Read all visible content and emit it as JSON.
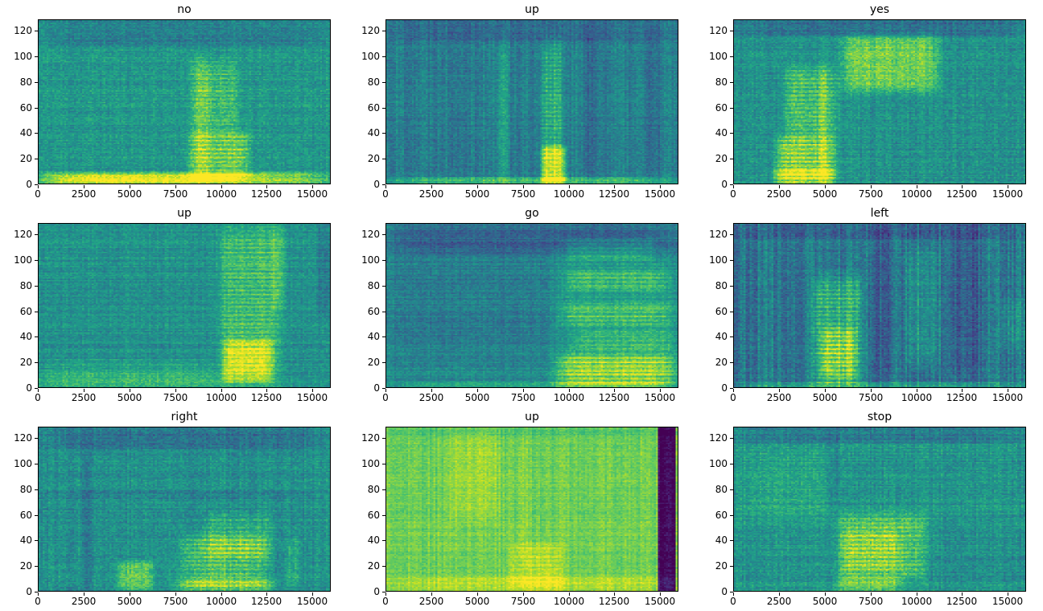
{
  "figure": {
    "background": "#ffffff"
  },
  "chart_data": {
    "type": "heatmap",
    "subtype": "audio-spectrogram-grid",
    "title": "",
    "colormap": "viridis",
    "colormap_stops": [
      [
        0.0,
        "#440154"
      ],
      [
        0.1,
        "#482475"
      ],
      [
        0.2,
        "#414487"
      ],
      [
        0.3,
        "#355f8d"
      ],
      [
        0.4,
        "#2a788e"
      ],
      [
        0.5,
        "#21918c"
      ],
      [
        0.6,
        "#22a884"
      ],
      [
        0.7,
        "#44bf70"
      ],
      [
        0.8,
        "#7ad151"
      ],
      [
        0.9,
        "#bddf26"
      ],
      [
        1.0,
        "#fde725"
      ]
    ],
    "grid": {
      "rows": 3,
      "cols": 3
    },
    "axes": {
      "x": {
        "max": 16000,
        "ticks": [
          0,
          2500,
          5000,
          7500,
          10000,
          12500,
          15000
        ]
      },
      "y": {
        "max": 129,
        "ticks": [
          0,
          20,
          40,
          60,
          80,
          100,
          120
        ]
      }
    },
    "panels": [
      {
        "title": "no",
        "seed": 11,
        "base": 0.53,
        "noise": 0.09,
        "col_stripe": 0.03,
        "row_stripe": 0.04,
        "features": [
          {
            "x": [
              0,
              16000
            ],
            "y": [
              0,
              9
            ],
            "amp": 0.3
          },
          {
            "x": [
              300,
              11500
            ],
            "y": [
              0,
              7
            ],
            "amp": 0.15
          },
          {
            "x": [
              8200,
              11600
            ],
            "y": [
              4,
              42
            ],
            "amp": 0.34,
            "striate": true,
            "ph": 0.4
          },
          {
            "x": [
              8300,
              11000
            ],
            "y": [
              40,
              97
            ],
            "amp": 0.2,
            "striate": true,
            "ph": 1.2
          },
          {
            "x": [
              0,
              16000
            ],
            "y": [
              108,
              129
            ],
            "amp": -0.1
          },
          {
            "x": [
              8600,
              9400
            ],
            "y": [
              0,
              100
            ],
            "amp": 0.1
          }
        ]
      },
      {
        "title": "up",
        "seed": 22,
        "base": 0.43,
        "noise": 0.08,
        "col_stripe": 0.06,
        "row_stripe": 0.03,
        "features": [
          {
            "x": [
              8500,
              9700
            ],
            "y": [
              0,
              112
            ],
            "amp": 0.26,
            "striate": true,
            "ph": 0.9
          },
          {
            "x": [
              8500,
              9900
            ],
            "y": [
              0,
              30
            ],
            "amp": 0.34
          },
          {
            "x": [
              6100,
              6700
            ],
            "y": [
              0,
              112
            ],
            "amp": 0.14
          },
          {
            "x": [
              0,
              16000
            ],
            "y": [
              0,
              5
            ],
            "amp": 0.26
          },
          {
            "x": [
              0,
              16000
            ],
            "y": [
              112,
              129
            ],
            "amp": -0.08
          },
          {
            "x": [
              10900,
              11700
            ],
            "y": [
              0,
              129
            ],
            "amp": -0.07
          },
          {
            "x": [
              14200,
              15100
            ],
            "y": [
              0,
              129
            ],
            "amp": -0.07
          }
        ]
      },
      {
        "title": "yes",
        "seed": 33,
        "base": 0.5,
        "noise": 0.09,
        "col_stripe": 0.04,
        "row_stripe": 0.04,
        "features": [
          {
            "x": [
              2300,
              5700
            ],
            "y": [
              0,
              38
            ],
            "amp": 0.42,
            "striate": true,
            "ph": 0.2
          },
          {
            "x": [
              2800,
              5700
            ],
            "y": [
              36,
              92
            ],
            "amp": 0.27,
            "striate": true,
            "ph": 1.7
          },
          {
            "x": [
              5900,
              11300
            ],
            "y": [
              72,
              117
            ],
            "amp": 0.28
          },
          {
            "x": [
              2000,
              5600
            ],
            "y": [
              0,
              12
            ],
            "amp": 0.18
          },
          {
            "x": [
              0,
              16000
            ],
            "y": [
              116,
              129
            ],
            "amp": -0.14
          },
          {
            "x": [
              4700,
              5100
            ],
            "y": [
              0,
              95
            ],
            "amp": 0.1
          }
        ]
      },
      {
        "title": "up",
        "seed": 44,
        "base": 0.5,
        "noise": 0.08,
        "col_stripe": 0.03,
        "row_stripe": 0.05,
        "features": [
          {
            "x": [
              9900,
              13300
            ],
            "y": [
              0,
              129
            ],
            "amp": 0.26,
            "striate": true,
            "ph": 0.6
          },
          {
            "x": [
              10100,
              12900
            ],
            "y": [
              3,
              38
            ],
            "amp": 0.28
          },
          {
            "x": [
              0,
              10200
            ],
            "y": [
              0,
              12
            ],
            "amp": 0.16
          },
          {
            "x": [
              0,
              10200
            ],
            "y": [
              10,
              22
            ],
            "amp": 0.07
          },
          {
            "x": [
              15300,
              16000
            ],
            "y": [
              55,
              129
            ],
            "amp": -0.09
          },
          {
            "x": [
              12800,
              13600
            ],
            "y": [
              60,
              129
            ],
            "amp": 0.1
          }
        ]
      },
      {
        "title": "go",
        "seed": 55,
        "base": 0.46,
        "noise": 0.075,
        "col_stripe": 0.03,
        "row_stripe": 0.05,
        "features": [
          {
            "x": [
              0,
              16000
            ],
            "y": [
              103,
              129
            ],
            "amp": -0.15
          },
          {
            "x": [
              9300,
              16000
            ],
            "y": [
              0,
              105
            ],
            "amp": 0.1
          },
          {
            "x": [
              9800,
              14700
            ],
            "y": [
              100,
              117
            ],
            "amp": 0.2,
            "striate": true,
            "ph": 0.3
          },
          {
            "x": [
              9800,
              15600
            ],
            "y": [
              76,
              92
            ],
            "amp": 0.18,
            "striate": true,
            "ph": 1.1
          },
          {
            "x": [
              9500,
              15900
            ],
            "y": [
              48,
              66
            ],
            "amp": 0.2,
            "striate": true,
            "ph": 2.0
          },
          {
            "x": [
              10400,
              15900
            ],
            "y": [
              28,
              46
            ],
            "amp": 0.16,
            "striate": true,
            "ph": 0.8
          },
          {
            "x": [
              9300,
              16000
            ],
            "y": [
              0,
              26
            ],
            "amp": 0.4,
            "striate": true,
            "ph": 1.5
          },
          {
            "x": [
              0,
              16000
            ],
            "y": [
              0,
              4
            ],
            "amp": 0.16
          },
          {
            "x": [
              0,
              9300
            ],
            "y": [
              20,
              103
            ],
            "amp": -0.04
          }
        ]
      },
      {
        "title": "left",
        "seed": 66,
        "base": 0.4,
        "noise": 0.09,
        "col_stripe": 0.09,
        "row_stripe": 0.03,
        "features": [
          {
            "x": [
              4300,
              7100
            ],
            "y": [
              0,
              88
            ],
            "amp": 0.32,
            "striate": true,
            "ph": 0.5
          },
          {
            "x": [
              4800,
              6700
            ],
            "y": [
              4,
              48
            ],
            "amp": 0.28,
            "striate": true,
            "ph": 1.9
          },
          {
            "x": [
              9400,
              11300
            ],
            "y": [
              15,
              112
            ],
            "amp": 0.12
          },
          {
            "x": [
              7700,
              8900
            ],
            "y": [
              0,
              129
            ],
            "amp": -0.07
          },
          {
            "x": [
              11900,
              13600
            ],
            "y": [
              0,
              129
            ],
            "amp": -0.09
          },
          {
            "x": [
              0,
              16000
            ],
            "y": [
              0,
              4
            ],
            "amp": 0.18
          },
          {
            "x": [
              0,
              16000
            ],
            "y": [
              116,
              129
            ],
            "amp": -0.07
          },
          {
            "x": [
              14500,
              16000
            ],
            "y": [
              30,
              70
            ],
            "amp": 0.08
          }
        ]
      },
      {
        "title": "right",
        "seed": 77,
        "base": 0.5,
        "noise": 0.09,
        "col_stripe": 0.045,
        "row_stripe": 0.04,
        "features": [
          {
            "x": [
              0,
              16000
            ],
            "y": [
              112,
              129
            ],
            "amp": -0.13
          },
          {
            "x": [
              4300,
              6300
            ],
            "y": [
              0,
              24
            ],
            "amp": 0.24
          },
          {
            "x": [
              7800,
              12600
            ],
            "y": [
              0,
              45
            ],
            "amp": 0.28,
            "striate": true,
            "ph": 0.7
          },
          {
            "x": [
              9000,
              12900
            ],
            "y": [
              25,
              62
            ],
            "amp": 0.16,
            "striate": true,
            "ph": 1.4
          },
          {
            "x": [
              7500,
              13100
            ],
            "y": [
              0,
              9
            ],
            "amp": 0.18
          },
          {
            "x": [
              2400,
              2900
            ],
            "y": [
              0,
              110
            ],
            "amp": -0.07
          },
          {
            "x": [
              13700,
              14300
            ],
            "y": [
              0,
              45
            ],
            "amp": 0.1
          },
          {
            "x": [
              0,
              16000
            ],
            "y": [
              72,
              80
            ],
            "amp": -0.06
          }
        ]
      },
      {
        "title": "up",
        "seed": 88,
        "base": 0.78,
        "noise": 0.055,
        "col_stripe": 0.04,
        "row_stripe": 0.03,
        "features": [
          {
            "x": [
              14950,
              15850
            ],
            "y": [
              0,
              129
            ],
            "amp": -0.76,
            "hard": true
          },
          {
            "x": [
              6800,
              9700
            ],
            "y": [
              0,
              38
            ],
            "amp": 0.16,
            "striate": true,
            "ph": 0.3
          },
          {
            "x": [
              3400,
              6300
            ],
            "y": [
              55,
              129
            ],
            "amp": 0.07
          },
          {
            "x": [
              0,
              16000
            ],
            "y": [
              0,
              12
            ],
            "amp": 0.1
          },
          {
            "x": [
              0,
              16000
            ],
            "y": [
              120,
              129
            ],
            "amp": -0.05
          },
          {
            "x": [
              7200,
              7800
            ],
            "y": [
              30,
              129
            ],
            "amp": 0.06
          }
        ]
      },
      {
        "title": "stop",
        "seed": 99,
        "base": 0.52,
        "noise": 0.09,
        "col_stripe": 0.04,
        "row_stripe": 0.05,
        "features": [
          {
            "x": [
              0,
              16000
            ],
            "y": [
              116,
              129
            ],
            "amp": -0.11
          },
          {
            "x": [
              5600,
              10600
            ],
            "y": [
              8,
              62
            ],
            "amp": 0.28,
            "striate": true,
            "ph": 0.6
          },
          {
            "x": [
              5800,
              9200
            ],
            "y": [
              14,
              48
            ],
            "amp": 0.16,
            "striate": true,
            "ph": 1.8
          },
          {
            "x": [
              5600,
              9200
            ],
            "y": [
              0,
              12
            ],
            "amp": 0.22
          },
          {
            "x": [
              300,
              5200
            ],
            "y": [
              55,
              112
            ],
            "amp": 0.07
          },
          {
            "x": [
              5300,
              5800
            ],
            "y": [
              0,
              129
            ],
            "amp": -0.05
          },
          {
            "x": [
              10500,
              16000
            ],
            "y": [
              0,
              60
            ],
            "amp": -0.03
          }
        ]
      }
    ]
  }
}
